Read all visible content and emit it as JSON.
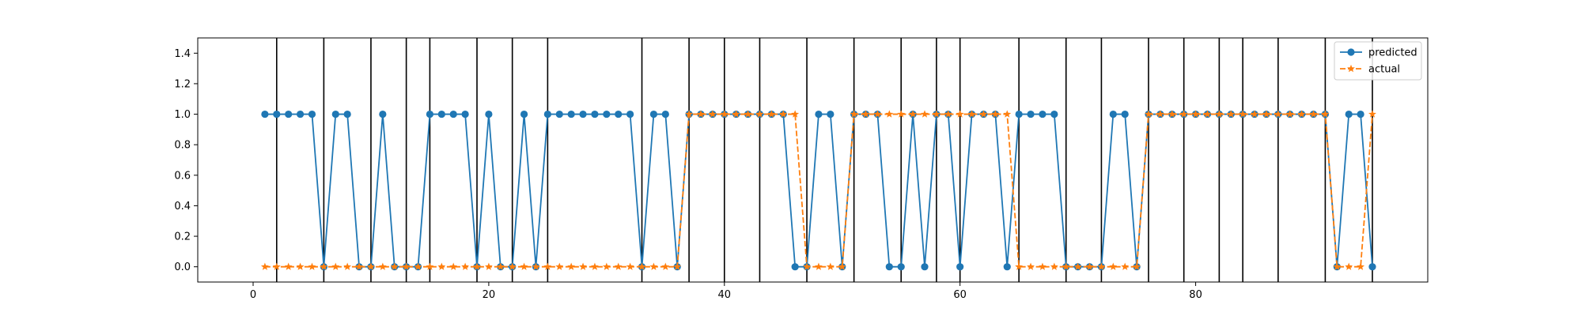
{
  "chart_data": {
    "type": "line",
    "title": "",
    "xlabel": "",
    "ylabel": "",
    "xlim": [
      -4.7,
      99.7
    ],
    "ylim": [
      -0.1,
      1.5
    ],
    "x_ticks": [
      0,
      20,
      40,
      60,
      80
    ],
    "y_ticks": [
      0.0,
      0.2,
      0.4,
      0.6,
      0.8,
      1.0,
      1.2,
      1.4
    ],
    "x_tick_labels": [
      "0",
      "20",
      "40",
      "60",
      "80"
    ],
    "y_tick_labels": [
      "0.0",
      "0.2",
      "0.4",
      "0.6",
      "0.8",
      "1.0",
      "1.2",
      "1.4"
    ],
    "grid": false,
    "legend_position": "top-right",
    "vertical_lines": [
      2,
      6,
      10,
      13,
      15,
      19,
      22,
      25,
      33,
      37,
      40,
      43,
      47,
      51,
      55,
      58,
      60,
      65,
      69,
      72,
      76,
      79,
      82,
      84,
      87,
      91,
      95
    ],
    "vertical_line_color": "#000000",
    "series": [
      {
        "name": "predicted",
        "color": "#1f77b4",
        "marker": "circle",
        "linestyle": "solid",
        "x": [
          1,
          2,
          3,
          4,
          5,
          6,
          7,
          8,
          9,
          10,
          11,
          12,
          13,
          14,
          15,
          16,
          17,
          18,
          19,
          20,
          21,
          22,
          23,
          24,
          25,
          26,
          27,
          28,
          29,
          30,
          31,
          32,
          33,
          34,
          35,
          36,
          37,
          38,
          39,
          40,
          41,
          42,
          43,
          44,
          45,
          46,
          47,
          48,
          49,
          50,
          51,
          52,
          53,
          54,
          55,
          56,
          57,
          58,
          59,
          60,
          61,
          62,
          63,
          64,
          65,
          66,
          67,
          68,
          69,
          70,
          71,
          72,
          73,
          74,
          75,
          76,
          77,
          78,
          79,
          80,
          81,
          82,
          83,
          84,
          85,
          86,
          87,
          88,
          89,
          90,
          91,
          92,
          93,
          94,
          95
        ],
        "y": [
          1,
          1,
          1,
          1,
          1,
          0,
          1,
          1,
          0,
          0,
          1,
          0,
          0,
          0,
          1,
          1,
          1,
          1,
          0,
          1,
          0,
          0,
          1,
          0,
          1,
          1,
          1,
          1,
          1,
          1,
          1,
          1,
          0,
          1,
          1,
          0,
          1,
          1,
          1,
          1,
          1,
          1,
          1,
          1,
          1,
          0,
          0,
          1,
          1,
          0,
          1,
          1,
          1,
          0,
          0,
          1,
          0,
          1,
          1,
          0,
          1,
          1,
          1,
          0,
          1,
          1,
          1,
          1,
          0,
          0,
          0,
          0,
          1,
          1,
          0,
          1,
          1,
          1,
          1,
          1,
          1,
          1,
          1,
          1,
          1,
          1,
          1,
          1,
          1,
          1,
          1,
          0,
          1,
          1,
          0
        ]
      },
      {
        "name": "actual",
        "color": "#ff7f0e",
        "marker": "star",
        "linestyle": "dashed",
        "x": [
          1,
          2,
          3,
          4,
          5,
          6,
          7,
          8,
          9,
          10,
          11,
          12,
          13,
          14,
          15,
          16,
          17,
          18,
          19,
          20,
          21,
          22,
          23,
          24,
          25,
          26,
          27,
          28,
          29,
          30,
          31,
          32,
          33,
          34,
          35,
          36,
          37,
          38,
          39,
          40,
          41,
          42,
          43,
          44,
          45,
          46,
          47,
          48,
          49,
          50,
          51,
          52,
          53,
          54,
          55,
          56,
          57,
          58,
          59,
          60,
          61,
          62,
          63,
          64,
          65,
          66,
          67,
          68,
          69,
          70,
          71,
          72,
          73,
          74,
          75,
          76,
          77,
          78,
          79,
          80,
          81,
          82,
          83,
          84,
          85,
          86,
          87,
          88,
          89,
          90,
          91,
          92,
          93,
          94,
          95
        ],
        "y": [
          0,
          0,
          0,
          0,
          0,
          0,
          0,
          0,
          0,
          0,
          0,
          0,
          0,
          0,
          0,
          0,
          0,
          0,
          0,
          0,
          0,
          0,
          0,
          0,
          0,
          0,
          0,
          0,
          0,
          0,
          0,
          0,
          0,
          0,
          0,
          0,
          1,
          1,
          1,
          1,
          1,
          1,
          1,
          1,
          1,
          1,
          0,
          0,
          0,
          0,
          1,
          1,
          1,
          1,
          1,
          1,
          1,
          1,
          1,
          1,
          1,
          1,
          1,
          1,
          0,
          0,
          0,
          0,
          0,
          0,
          0,
          0,
          0,
          0,
          0,
          1,
          1,
          1,
          1,
          1,
          1,
          1,
          1,
          1,
          1,
          1,
          1,
          1,
          1,
          1,
          1,
          0,
          0,
          0,
          1
        ]
      }
    ]
  }
}
